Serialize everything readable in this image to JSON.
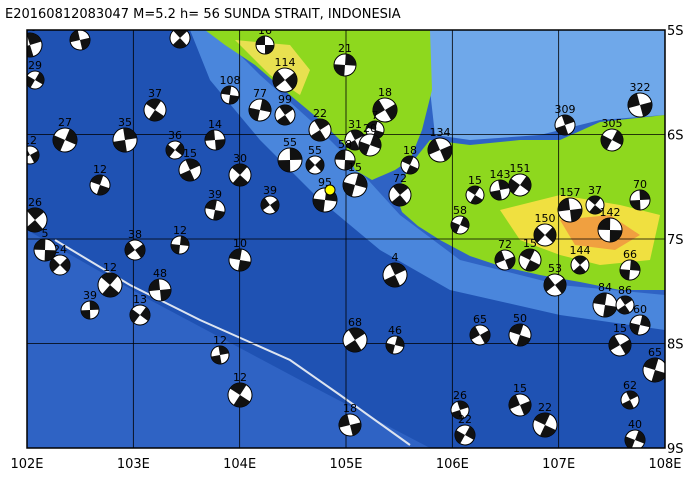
{
  "header": {
    "title": "E20160812083047 M=5.2 h= 56 SUNDA STRAIT, INDONESIA"
  },
  "lon_labels": [
    "102E",
    "103E",
    "104E",
    "105E",
    "106E",
    "107E",
    "108E"
  ],
  "lat_labels": [
    "5S",
    "6S",
    "7S",
    "8S",
    "9S"
  ],
  "events": [
    {
      "depth": "16"
    },
    {
      "depth": "14"
    },
    {
      "depth": "21"
    },
    {
      "depth": "114"
    },
    {
      "depth": "108"
    },
    {
      "depth": "99"
    },
    {
      "depth": "77"
    },
    {
      "depth": "18"
    },
    {
      "depth": "7"
    },
    {
      "depth": "31"
    },
    {
      "depth": "20"
    },
    {
      "depth": "134"
    },
    {
      "depth": "18"
    },
    {
      "depth": "309"
    },
    {
      "depth": "305"
    },
    {
      "depth": "322"
    },
    {
      "depth": "15"
    },
    {
      "depth": "143"
    },
    {
      "depth": "151"
    },
    {
      "depth": "157"
    },
    {
      "depth": "37"
    },
    {
      "depth": "70"
    },
    {
      "depth": "150"
    },
    {
      "depth": "142"
    },
    {
      "depth": "144"
    },
    {
      "depth": "66"
    },
    {
      "depth": "53"
    },
    {
      "depth": "84"
    },
    {
      "depth": "86"
    },
    {
      "depth": "60"
    },
    {
      "depth": "15"
    },
    {
      "depth": "65"
    },
    {
      "depth": "62"
    },
    {
      "depth": "40"
    },
    {
      "depth": "15"
    },
    {
      "depth": "22"
    },
    {
      "depth": "26"
    },
    {
      "depth": "22"
    },
    {
      "depth": "18"
    },
    {
      "depth": "12"
    },
    {
      "depth": "12"
    },
    {
      "depth": "13"
    },
    {
      "depth": "48"
    },
    {
      "depth": "12"
    },
    {
      "depth": "39"
    },
    {
      "depth": "24"
    },
    {
      "depth": "5"
    },
    {
      "depth": "26"
    },
    {
      "depth": "12"
    },
    {
      "depth": "38"
    },
    {
      "depth": "10"
    },
    {
      "depth": "68"
    },
    {
      "depth": "46"
    },
    {
      "depth": "65"
    },
    {
      "depth": "50"
    },
    {
      "depth": "4"
    },
    {
      "depth": "58"
    },
    {
      "depth": "72"
    },
    {
      "depth": "15"
    },
    {
      "depth": "50"
    },
    {
      "depth": "29"
    },
    {
      "depth": "7"
    },
    {
      "depth": "37"
    },
    {
      "depth": "35"
    },
    {
      "depth": "36"
    },
    {
      "depth": "14"
    },
    {
      "depth": "30"
    },
    {
      "depth": "55"
    },
    {
      "depth": "55"
    },
    {
      "depth": "58"
    },
    {
      "depth": "72"
    },
    {
      "depth": "95"
    },
    {
      "depth": "39"
    },
    {
      "depth": "39"
    },
    {
      "depth": "22"
    },
    {
      "depth": "15"
    },
    {
      "depth": "12"
    },
    {
      "depth": "12"
    },
    {
      "depth": "15"
    },
    {
      "depth": "27"
    }
  ]
}
